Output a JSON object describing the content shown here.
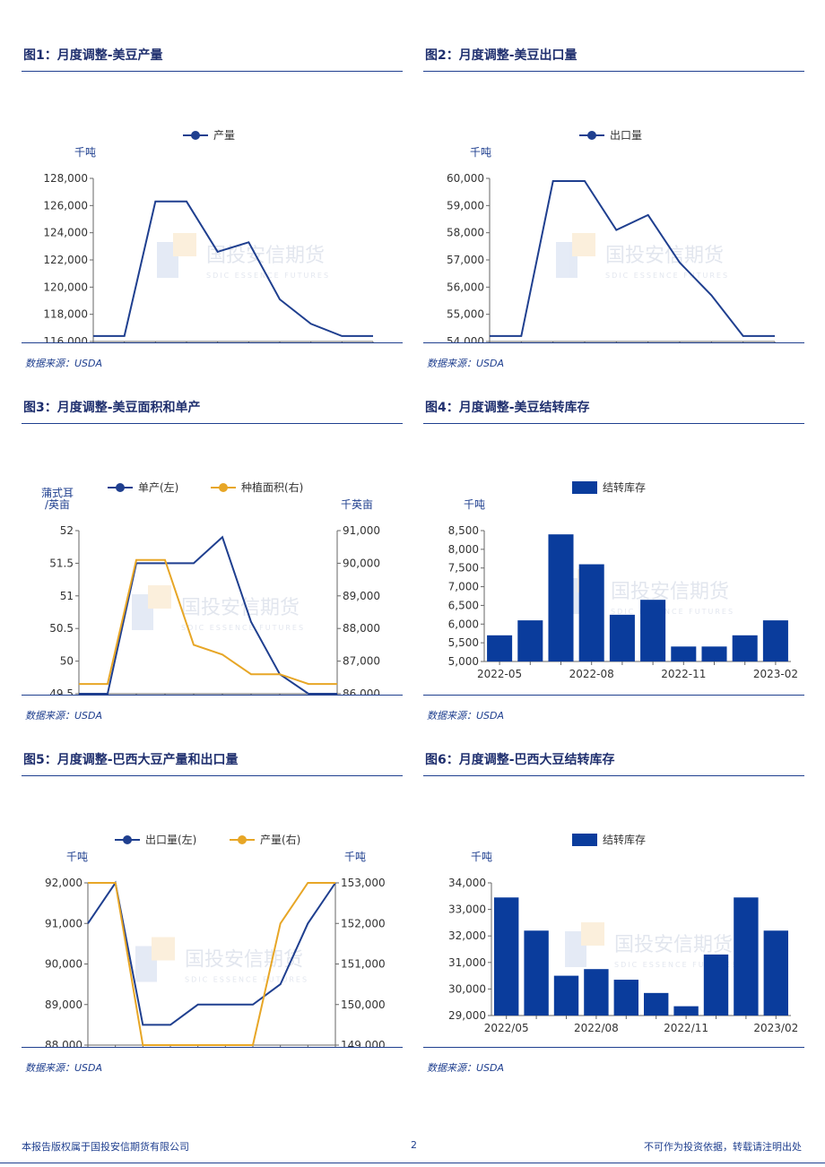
{
  "colors": {
    "blue": "#1f3f8f",
    "orange": "#e7a626",
    "bar": "#0a3c9c"
  },
  "watermark": {
    "name": "国投安信期货",
    "sub": "SDIC ESSENCE FUTURES"
  },
  "footer": {
    "left": "本报告版权属于国投安信期货有限公司",
    "page": "2",
    "right": "不可作为投资依据，转载请注明出处"
  },
  "panels": [
    {
      "title": "图1：月度调整-美豆产量",
      "source": "数据来源：USDA"
    },
    {
      "title": "图2：月度调整-美豆出口量",
      "source": "数据来源：USDA"
    },
    {
      "title": "图3：月度调整-美豆面积和单产",
      "source": "数据来源：USDA"
    },
    {
      "title": "图4：月度调整-美豆结转库存",
      "source": "数据来源：USDA"
    },
    {
      "title": "图5：月度调整-巴西大豆产量和出口量",
      "source": "数据来源：USDA"
    },
    {
      "title": "图6：月度调整-巴西大豆结转库存",
      "source": "数据来源：USDA"
    }
  ],
  "chart_data": [
    {
      "type": "line",
      "ylabel": "千吨",
      "x": [
        "2022-05",
        "2022-06",
        "2022-07",
        "2022-08",
        "2022-09",
        "2022-10",
        "2022-11",
        "2022-12",
        "2023-01",
        "2023-02"
      ],
      "xticks": [
        "2022-05",
        "2022-08",
        "2022-11",
        "2023-02"
      ],
      "ylim": [
        116000,
        128000
      ],
      "yticks": [
        "116,000",
        "118,000",
        "120,000",
        "122,000",
        "124,000",
        "126,000",
        "128,000"
      ],
      "series": [
        {
          "name": "产量",
          "axis": "left",
          "color": "#1f3f8f",
          "values": [
            116400,
            116400,
            126300,
            126300,
            122600,
            123300,
            119100,
            117300,
            116400,
            116400
          ]
        }
      ]
    },
    {
      "type": "line",
      "ylabel": "千吨",
      "x": [
        "2022-05",
        "2022-06",
        "2022-07",
        "2022-08",
        "2022-09",
        "2022-10",
        "2022-11",
        "2022-12",
        "2023-01",
        "2023-02"
      ],
      "xticks": [
        "2022-05",
        "2022-08",
        "2022-11",
        "2023-02"
      ],
      "ylim": [
        54000,
        60000
      ],
      "yticks": [
        "54,000",
        "55,000",
        "56,000",
        "57,000",
        "58,000",
        "59,000",
        "60,000"
      ],
      "series": [
        {
          "name": "出口量",
          "axis": "left",
          "color": "#1f3f8f",
          "values": [
            54200,
            54200,
            59900,
            59900,
            58100,
            58650,
            56900,
            55700,
            54200,
            54200
          ]
        }
      ]
    },
    {
      "type": "line",
      "ylabel": "蒲式耳/英亩",
      "ylabel2": "千英亩",
      "x": [
        "2022-05",
        "2022-06",
        "2022-07",
        "2022-08",
        "2022-09",
        "2022-10",
        "2022-11",
        "2022-12",
        "2023-01",
        "2023-02"
      ],
      "xticks": [
        "2022-05",
        "2022-08",
        "2022-11",
        "2023-02"
      ],
      "ylim": [
        49.5,
        52
      ],
      "yticks": [
        "49.5",
        "50",
        "50.5",
        "51",
        "51.5",
        "52"
      ],
      "ylim2": [
        86000,
        91000
      ],
      "yticks2": [
        "86,000",
        "87,000",
        "88,000",
        "89,000",
        "90,000",
        "91,000"
      ],
      "series": [
        {
          "name": "单产(左)",
          "axis": "left",
          "color": "#1f3f8f",
          "values": [
            49.5,
            49.5,
            51.5,
            51.5,
            51.5,
            51.9,
            50.6,
            49.8,
            49.5,
            49.5
          ]
        },
        {
          "name": "种植面积(右)",
          "axis": "right",
          "color": "#e7a626",
          "values": [
            86300,
            86300,
            90100,
            90100,
            87500,
            87200,
            86600,
            86600,
            86300,
            86300
          ]
        }
      ]
    },
    {
      "type": "bar",
      "ylabel": "千吨",
      "x": [
        "2022-05",
        "2022-06",
        "2022-07",
        "2022-08",
        "2022-09",
        "2022-10",
        "2022-11",
        "2022-12",
        "2023-01",
        "2023-02"
      ],
      "xticks": [
        "2022-05",
        "2022-08",
        "2022-11",
        "2023-02"
      ],
      "ylim": [
        5000,
        8500
      ],
      "yticks": [
        "5,000",
        "5,500",
        "6,000",
        "6,500",
        "7,000",
        "7,500",
        "8,000",
        "8,500"
      ],
      "series": [
        {
          "name": "结转库存",
          "color": "#0a3c9c",
          "values": [
            5700,
            6100,
            8400,
            7600,
            6250,
            6650,
            5400,
            5400,
            5700,
            6100
          ]
        }
      ]
    },
    {
      "type": "line",
      "ylabel": "千吨",
      "ylabel2": "千吨",
      "x": [
        "2022-05",
        "2022-06",
        "2022-07",
        "2022-08",
        "2022-09",
        "2022-10",
        "2022-11",
        "2022-12",
        "2023-01",
        "2023-02"
      ],
      "xticks": [
        "2022-05",
        "2022-08",
        "2022-11",
        "2023-02"
      ],
      "ylim": [
        88000,
        92000
      ],
      "yticks": [
        "88,000",
        "89,000",
        "90,000",
        "91,000",
        "92,000"
      ],
      "ylim2": [
        149000,
        153000
      ],
      "yticks2": [
        "149,000",
        "150,000",
        "151,000",
        "152,000",
        "153,000"
      ],
      "series": [
        {
          "name": "出口量(左)",
          "axis": "left",
          "color": "#1f3f8f",
          "values": [
            91000,
            92000,
            88500,
            88500,
            89000,
            89000,
            89000,
            89500,
            91000,
            92000
          ]
        },
        {
          "name": "产量(右)",
          "axis": "right",
          "color": "#e7a626",
          "values": [
            153000,
            153000,
            149000,
            149000,
            149000,
            149000,
            149000,
            152000,
            153000,
            153000
          ]
        }
      ]
    },
    {
      "type": "bar",
      "ylabel": "千吨",
      "x": [
        "2022/05",
        "2022/06",
        "2022/07",
        "2022/08",
        "2022/09",
        "2022/10",
        "2022/11",
        "2022/12",
        "2023/01",
        "2023/02"
      ],
      "xticks": [
        "2022/05",
        "2022/08",
        "2022/11",
        "2023/02"
      ],
      "ylim": [
        29000,
        34000
      ],
      "yticks": [
        "29,000",
        "30,000",
        "31,000",
        "32,000",
        "33,000",
        "34,000"
      ],
      "series": [
        {
          "name": "结转库存",
          "color": "#0a3c9c",
          "values": [
            33450,
            32200,
            30500,
            30750,
            30350,
            29850,
            29350,
            31300,
            33450,
            32200
          ]
        }
      ]
    }
  ]
}
